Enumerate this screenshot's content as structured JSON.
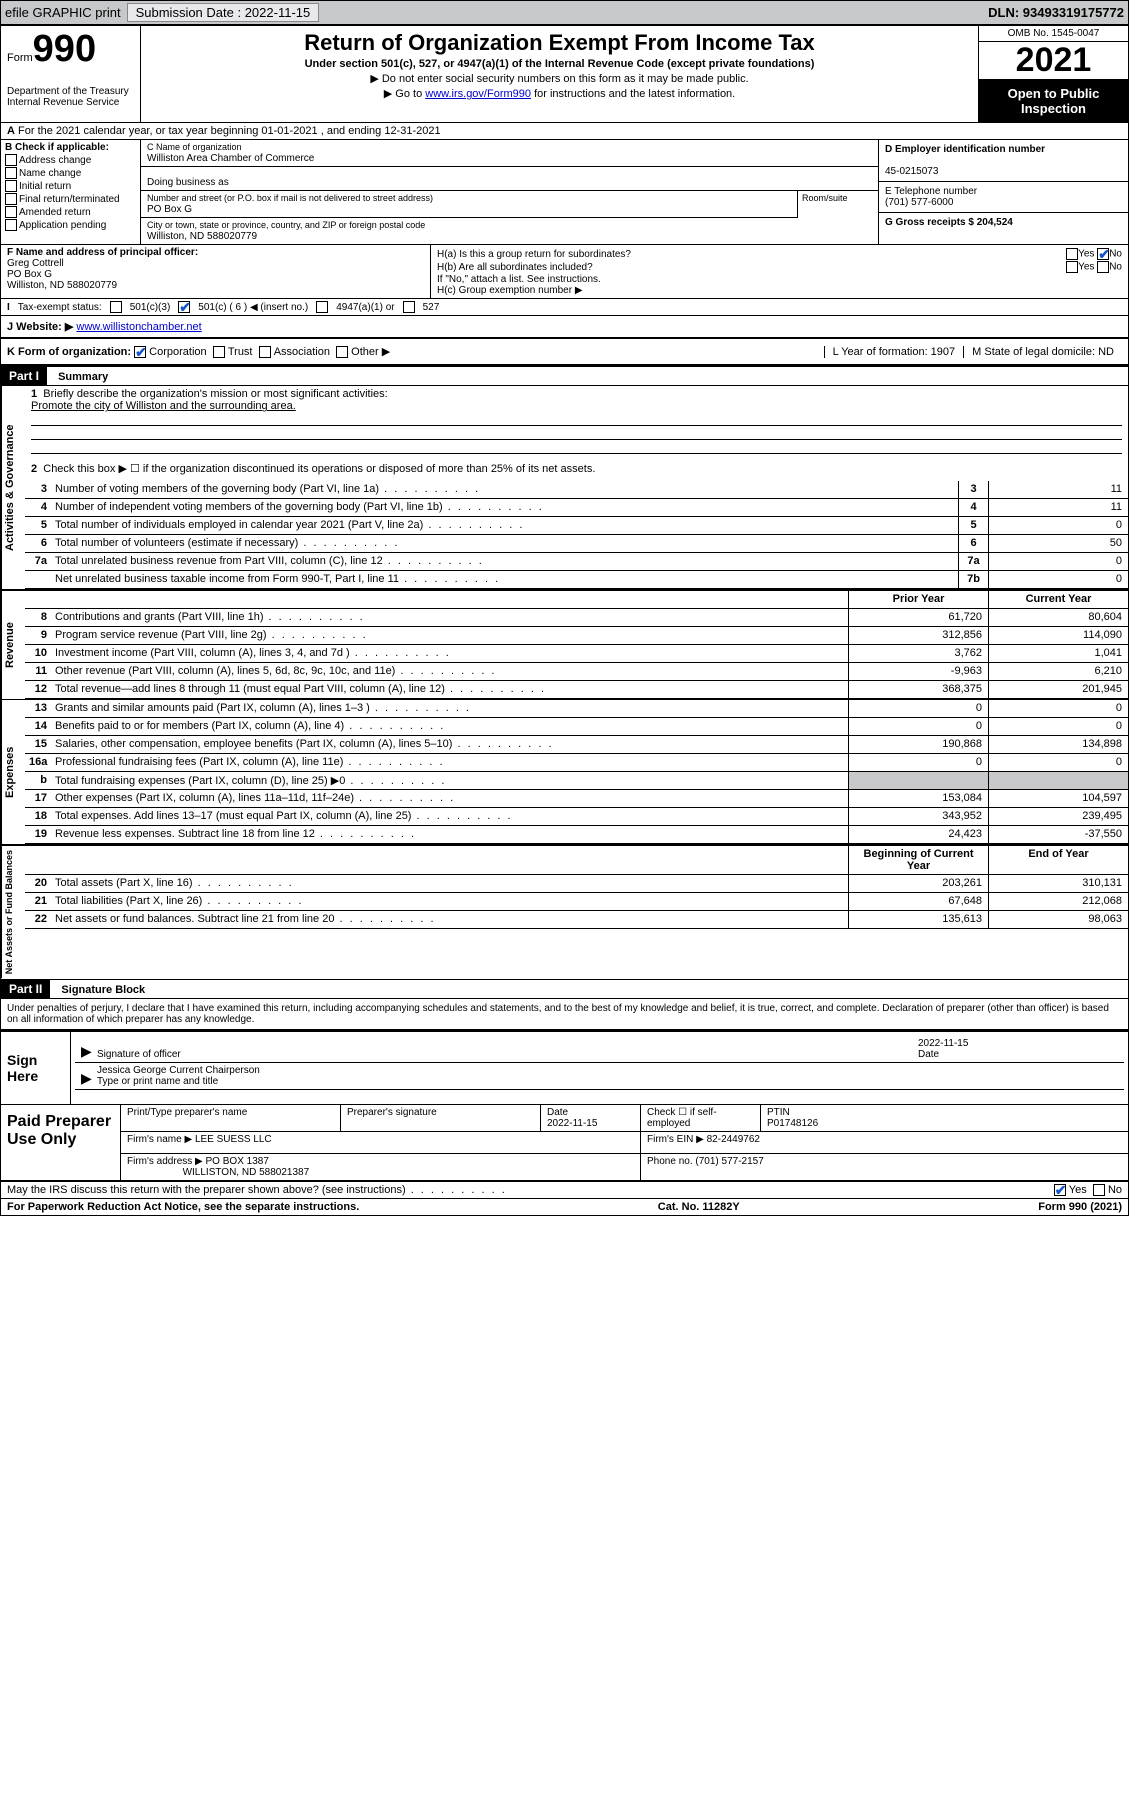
{
  "topbar": {
    "efile": "efile GRAPHIC print",
    "submission_label": "Submission Date : 2022-11-15",
    "dln": "DLN: 93493319175772"
  },
  "header": {
    "form_word": "Form",
    "form_num": "990",
    "dept": "Department of the Treasury Internal Revenue Service",
    "title": "Return of Organization Exempt From Income Tax",
    "sub": "Under section 501(c), 527, or 4947(a)(1) of the Internal Revenue Code (except private foundations)",
    "note1": "▶ Do not enter social security numbers on this form as it may be made public.",
    "note2a": "▶ Go to ",
    "note2_link": "www.irs.gov/Form990",
    "note2b": " for instructions and the latest information.",
    "omb": "OMB No. 1545-0047",
    "year": "2021",
    "open": "Open to Public Inspection"
  },
  "row_a": "For the 2021 calendar year, or tax year beginning 01-01-2021   , and ending 12-31-2021",
  "sec_b": {
    "label": "B Check if applicable:",
    "opts": [
      "Address change",
      "Name change",
      "Initial return",
      "Final return/terminated",
      "Amended return",
      "Application pending"
    ],
    "c_name_lbl": "C Name of organization",
    "c_name": "Williston Area Chamber of Commerce",
    "dba_lbl": "Doing business as",
    "addr_lbl": "Number and street (or P.O. box if mail is not delivered to street address)",
    "room_lbl": "Room/suite",
    "addr": "PO Box G",
    "city_lbl": "City or town, state or province, country, and ZIP or foreign postal code",
    "city": "Williston, ND  588020779",
    "d_lbl": "D Employer identification number",
    "d_val": "45-0215073",
    "e_lbl": "E Telephone number",
    "e_val": "(701) 577-6000",
    "g_lbl": "G Gross receipts $ 204,524"
  },
  "sec_f": {
    "f_lbl": "F Name and address of principal officer:",
    "f_name": "Greg Cottrell",
    "f_addr": "PO Box G",
    "f_city": "Williston, ND  588020779",
    "ha": "H(a)  Is this a group return for subordinates?",
    "hb": "H(b)  Are all subordinates included?",
    "hb_note": "If \"No,\" attach a list. See instructions.",
    "hc": "H(c)  Group exemption number ▶",
    "yes": "Yes",
    "no": "No"
  },
  "row_i": {
    "lbl": "Tax-exempt status:",
    "o1": "501(c)(3)",
    "o2": "501(c) ( 6 ) ◀ (insert no.)",
    "o3": "4947(a)(1) or",
    "o4": "527"
  },
  "row_j": {
    "lbl": "J   Website: ▶ ",
    "url": "www.willistonchamber.net"
  },
  "row_k": {
    "lbl": "K Form of organization:",
    "o1": "Corporation",
    "o2": "Trust",
    "o3": "Association",
    "o4": "Other ▶",
    "l": "L Year of formation: 1907",
    "m": "M State of legal domicile: ND"
  },
  "part1": {
    "label": "Part I",
    "title": "Summary"
  },
  "mission": {
    "q": "Briefly describe the organization's mission or most significant activities:",
    "a": "Promote the city of Williston and the surrounding area."
  },
  "line2": "Check this box ▶ ☐  if the organization discontinued its operations or disposed of more than 25% of its net assets.",
  "lines_gov": [
    {
      "n": "3",
      "d": "Number of voting members of the governing body (Part VI, line 1a)",
      "bn": "3",
      "v": "11"
    },
    {
      "n": "4",
      "d": "Number of independent voting members of the governing body (Part VI, line 1b)",
      "bn": "4",
      "v": "11"
    },
    {
      "n": "5",
      "d": "Total number of individuals employed in calendar year 2021 (Part V, line 2a)",
      "bn": "5",
      "v": "0"
    },
    {
      "n": "6",
      "d": "Total number of volunteers (estimate if necessary)",
      "bn": "6",
      "v": "50"
    },
    {
      "n": "7a",
      "d": "Total unrelated business revenue from Part VIII, column (C), line 12",
      "bn": "7a",
      "v": "0"
    },
    {
      "n": "",
      "d": "Net unrelated business taxable income from Form 990-T, Part I, line 11",
      "bn": "7b",
      "v": "0"
    }
  ],
  "col_hdr": {
    "py": "Prior Year",
    "cy": "Current Year",
    "bcy": "Beginning of Current Year",
    "eoy": "End of Year"
  },
  "lines_rev": [
    {
      "n": "8",
      "d": "Contributions and grants (Part VIII, line 1h)",
      "py": "61,720",
      "cy": "80,604"
    },
    {
      "n": "9",
      "d": "Program service revenue (Part VIII, line 2g)",
      "py": "312,856",
      "cy": "114,090"
    },
    {
      "n": "10",
      "d": "Investment income (Part VIII, column (A), lines 3, 4, and 7d )",
      "py": "3,762",
      "cy": "1,041"
    },
    {
      "n": "11",
      "d": "Other revenue (Part VIII, column (A), lines 5, 6d, 8c, 9c, 10c, and 11e)",
      "py": "-9,963",
      "cy": "6,210"
    },
    {
      "n": "12",
      "d": "Total revenue—add lines 8 through 11 (must equal Part VIII, column (A), line 12)",
      "py": "368,375",
      "cy": "201,945"
    }
  ],
  "lines_exp": [
    {
      "n": "13",
      "d": "Grants and similar amounts paid (Part IX, column (A), lines 1–3 )",
      "py": "0",
      "cy": "0"
    },
    {
      "n": "14",
      "d": "Benefits paid to or for members (Part IX, column (A), line 4)",
      "py": "0",
      "cy": "0"
    },
    {
      "n": "15",
      "d": "Salaries, other compensation, employee benefits (Part IX, column (A), lines 5–10)",
      "py": "190,868",
      "cy": "134,898"
    },
    {
      "n": "16a",
      "d": "Professional fundraising fees (Part IX, column (A), line 11e)",
      "py": "0",
      "cy": "0"
    },
    {
      "n": "b",
      "d": "Total fundraising expenses (Part IX, column (D), line 25) ▶0",
      "py": "",
      "cy": "",
      "gray": true
    },
    {
      "n": "17",
      "d": "Other expenses (Part IX, column (A), lines 11a–11d, 11f–24e)",
      "py": "153,084",
      "cy": "104,597"
    },
    {
      "n": "18",
      "d": "Total expenses. Add lines 13–17 (must equal Part IX, column (A), line 25)",
      "py": "343,952",
      "cy": "239,495"
    },
    {
      "n": "19",
      "d": "Revenue less expenses. Subtract line 18 from line 12",
      "py": "24,423",
      "cy": "-37,550"
    }
  ],
  "lines_na": [
    {
      "n": "20",
      "d": "Total assets (Part X, line 16)",
      "py": "203,261",
      "cy": "310,131"
    },
    {
      "n": "21",
      "d": "Total liabilities (Part X, line 26)",
      "py": "67,648",
      "cy": "212,068"
    },
    {
      "n": "22",
      "d": "Net assets or fund balances. Subtract line 21 from line 20",
      "py": "135,613",
      "cy": "98,063"
    }
  ],
  "vtabs": {
    "gov": "Activities & Governance",
    "rev": "Revenue",
    "exp": "Expenses",
    "na": "Net Assets or Fund Balances"
  },
  "part2": {
    "label": "Part II",
    "title": "Signature Block"
  },
  "decl": "Under penalties of perjury, I declare that I have examined this return, including accompanying schedules and statements, and to the best of my knowledge and belief, it is true, correct, and complete. Declaration of preparer (other than officer) is based on all information of which preparer has any knowledge.",
  "sign": {
    "here": "Sign Here",
    "sig_lbl": "Signature of officer",
    "date": "2022-11-15",
    "date_lbl": "Date",
    "name": "Jessica George  Current Chairperson",
    "name_lbl": "Type or print name and title"
  },
  "paid": {
    "title": "Paid Preparer Use Only",
    "h1": "Print/Type preparer's name",
    "h2": "Preparer's signature",
    "h3": "Date",
    "h3v": "2022-11-15",
    "h4": "Check ☐ if self-employed",
    "h5": "PTIN",
    "h5v": "P01748126",
    "firm_lbl": "Firm's name   ▶",
    "firm": "LEE SUESS LLC",
    "ein_lbl": "Firm's EIN ▶",
    "ein": "82-2449762",
    "addr_lbl": "Firm's address ▶",
    "addr1": "PO BOX 1387",
    "addr2": "WILLISTON, ND  588021387",
    "phone_lbl": "Phone no.",
    "phone": "(701) 577-2157"
  },
  "may": {
    "q": "May the IRS discuss this return with the preparer shown above? (see instructions)",
    "yes": "Yes",
    "no": "No"
  },
  "foot": {
    "l": "For Paperwork Reduction Act Notice, see the separate instructions.",
    "m": "Cat. No. 11282Y",
    "r": "Form 990 (2021)"
  }
}
